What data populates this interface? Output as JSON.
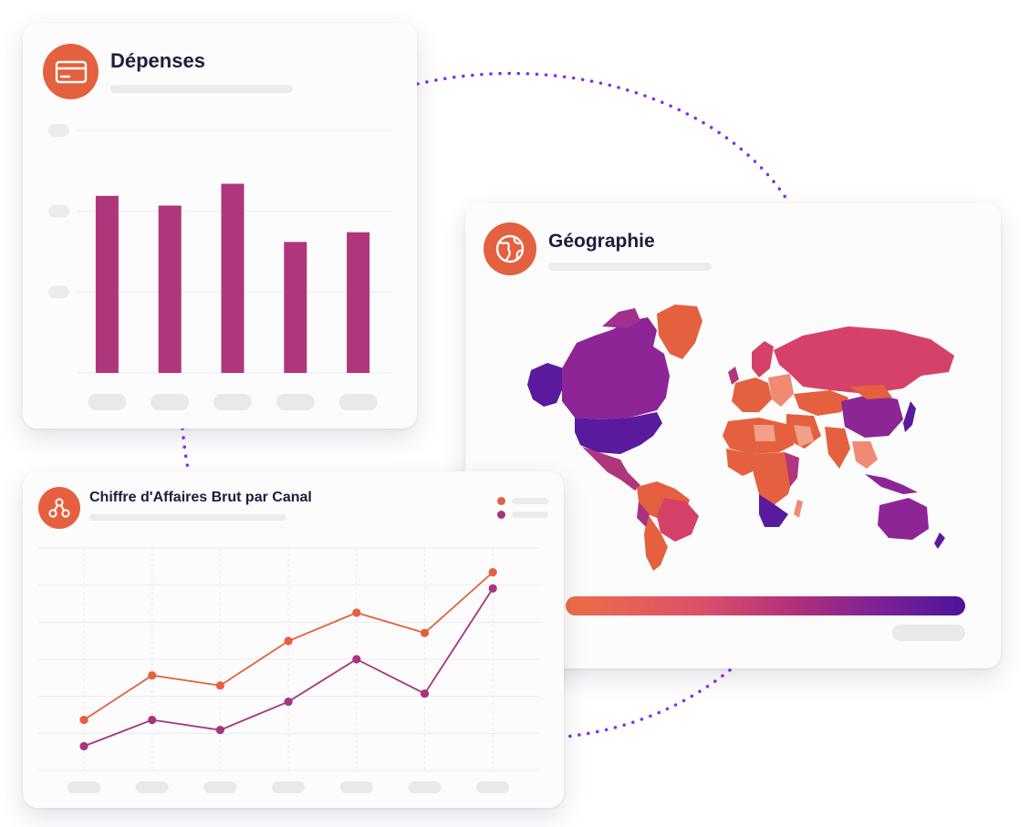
{
  "colors": {
    "accent": "#e4603e",
    "bar": "#b0367c",
    "line_a": "#e4603e",
    "line_b": "#a8347f",
    "connector": "#7b2ff7",
    "grid": "#ececf0",
    "gradient_start": "#ec6f48",
    "gradient_mid": "#b63378",
    "gradient_end": "#4b139c"
  },
  "expenses_card": {
    "title": "Dépenses",
    "icon": "credit-card-icon"
  },
  "geo_card": {
    "title": "Géographie",
    "icon": "globe-icon"
  },
  "revenue_card": {
    "title": "Chiffre d'Affaires Brut par Canal",
    "icon": "share-nodes-icon"
  },
  "chart_data": [
    {
      "type": "bar",
      "title": "Dépenses",
      "categories": [
        "",
        "",
        "",
        "",
        ""
      ],
      "values": [
        73,
        69,
        78,
        54,
        58
      ],
      "ylim": [
        0,
        100
      ],
      "grid": true
    },
    {
      "type": "line",
      "title": "Chiffre d'Affaires Brut par Canal",
      "categories": [
        "",
        "",
        "",
        "",
        "",
        "",
        ""
      ],
      "series": [
        {
          "name": "",
          "values": [
            25,
            47,
            42,
            64,
            78,
            68,
            98
          ]
        },
        {
          "name": "",
          "values": [
            12,
            25,
            20,
            34,
            55,
            38,
            90
          ]
        }
      ],
      "ylim": [
        0,
        110
      ],
      "grid": true,
      "legend": "top-right"
    },
    {
      "type": "heatmap",
      "title": "Géographie",
      "scale": "orange-to-purple"
    }
  ]
}
